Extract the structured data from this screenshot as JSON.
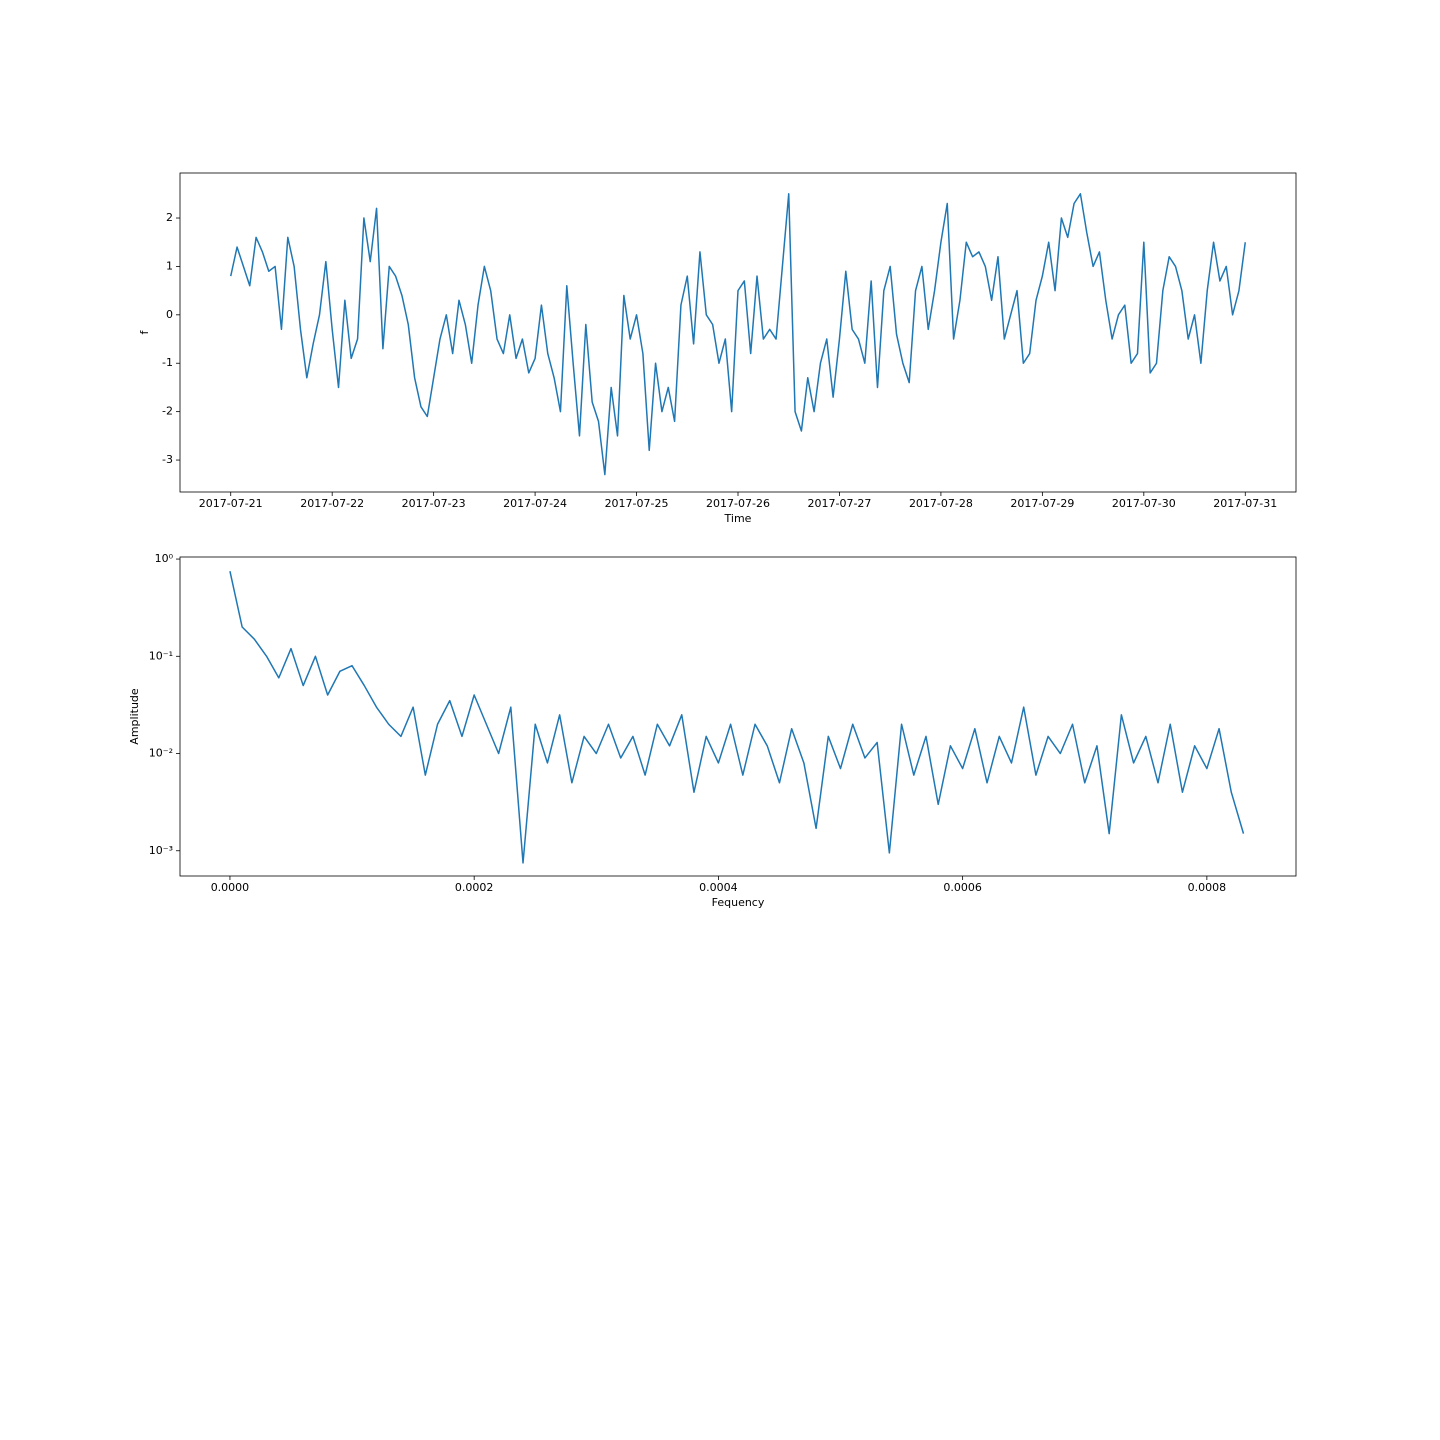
{
  "chart_data": [
    {
      "type": "line",
      "xlabel": "Time",
      "ylabel": "f",
      "color": "#1f77b4",
      "x": [
        0,
        1.5,
        3,
        4.5,
        6,
        7.5,
        9,
        10.5,
        12,
        13.5,
        15,
        16.5,
        18,
        19.5,
        21,
        22.5,
        24,
        25.5,
        27,
        28.5,
        30,
        31.5,
        33,
        34.5,
        36,
        37.5,
        39,
        40.5,
        42,
        43.5,
        45,
        46.5,
        48,
        49.5,
        51,
        52.5,
        54,
        55.5,
        57,
        58.5,
        60,
        61.5,
        63,
        64.5,
        66,
        67.5,
        69,
        70.5,
        72,
        73.5,
        75,
        76.5,
        78,
        79.5,
        81,
        82.5,
        84,
        85.5,
        87,
        88.5,
        90,
        91.5,
        93,
        94.5,
        96,
        97.5,
        99,
        100.5,
        102,
        103.5,
        105,
        106.5,
        108,
        109.5,
        111,
        112.5,
        114,
        115.5,
        117,
        118.5,
        120,
        121.5,
        123,
        124.5,
        126,
        127.5,
        129,
        130.5,
        132,
        133.5,
        135,
        136.5,
        138,
        139.5,
        141,
        142.5,
        144,
        145.5,
        147,
        148.5,
        150,
        151.5,
        153,
        154.5,
        156,
        157.5,
        159,
        160.5,
        162,
        163.5,
        165,
        166.5,
        168,
        169.5,
        171,
        172.5,
        174,
        175.5,
        177,
        178.5,
        180,
        181.5,
        183,
        184.5,
        186,
        187.5,
        189,
        190.5,
        192,
        193.5,
        195,
        196.5,
        198,
        199.5,
        201,
        202.5,
        204,
        205.5,
        207,
        208.5,
        210,
        211.5,
        213,
        214.5,
        216,
        217.5,
        219,
        220.5,
        222,
        223.5,
        225,
        226.5,
        228,
        229.5,
        231,
        232.5,
        234,
        235.5,
        237,
        238.5,
        240
      ],
      "values": [
        0.8,
        1.4,
        1.0,
        0.6,
        1.6,
        1.3,
        0.9,
        1.0,
        -0.3,
        1.6,
        1.0,
        -0.3,
        -1.3,
        -0.6,
        0.0,
        1.1,
        -0.3,
        -1.5,
        0.3,
        -0.9,
        -0.5,
        2.0,
        1.1,
        2.2,
        -0.7,
        1.0,
        0.8,
        0.4,
        -0.2,
        -1.3,
        -1.9,
        -2.1,
        -1.3,
        -0.5,
        0.0,
        -0.8,
        0.3,
        -0.2,
        -1.0,
        0.2,
        1.0,
        0.5,
        -0.5,
        -0.8,
        0.0,
        -0.9,
        -0.5,
        -1.2,
        -0.9,
        0.2,
        -0.8,
        -1.3,
        -2.0,
        0.6,
        -1.0,
        -2.5,
        -0.2,
        -1.8,
        -2.2,
        -3.3,
        -1.5,
        -2.5,
        0.4,
        -0.5,
        0.0,
        -0.8,
        -2.8,
        -1.0,
        -2.0,
        -1.5,
        -2.2,
        0.2,
        0.8,
        -0.6,
        1.3,
        0.0,
        -0.2,
        -1.0,
        -0.5,
        -2.0,
        0.5,
        0.7,
        -0.8,
        0.8,
        -0.5,
        -0.3,
        -0.5,
        1.0,
        2.5,
        -2.0,
        -2.4,
        -1.3,
        -2.0,
        -1.0,
        -0.5,
        -1.7,
        -0.5,
        0.9,
        -0.3,
        -0.5,
        -1.0,
        0.7,
        -1.5,
        0.5,
        1.0,
        -0.4,
        -1.0,
        -1.4,
        0.5,
        1.0,
        -0.3,
        0.5,
        1.5,
        2.3,
        -0.5,
        0.3,
        1.5,
        1.2,
        1.3,
        1.0,
        0.3,
        1.2,
        -0.5,
        0.0,
        0.5,
        -1.0,
        -0.8,
        0.3,
        0.8,
        1.5,
        0.5,
        2.0,
        1.6,
        2.3,
        2.5,
        1.7,
        1.0,
        1.3,
        0.3,
        -0.5,
        0.0,
        0.2,
        -1.0,
        -0.8,
        1.5,
        -1.2,
        -1.0,
        0.5,
        1.2,
        1.0,
        0.5,
        -0.5,
        0.0,
        -1.0,
        0.5,
        1.5,
        0.7,
        1.0,
        0.0,
        0.5,
        1.5
      ],
      "xlim": [
        -12,
        252
      ],
      "xticks": [
        {
          "value": 0,
          "label": "2017-07-21"
        },
        {
          "value": 24,
          "label": "2017-07-22"
        },
        {
          "value": 48,
          "label": "2017-07-23"
        },
        {
          "value": 72,
          "label": "2017-07-24"
        },
        {
          "value": 96,
          "label": "2017-07-25"
        },
        {
          "value": 120,
          "label": "2017-07-26"
        },
        {
          "value": 144,
          "label": "2017-07-27"
        },
        {
          "value": 168,
          "label": "2017-07-28"
        },
        {
          "value": 192,
          "label": "2017-07-29"
        },
        {
          "value": 216,
          "label": "2017-07-30"
        },
        {
          "value": 240,
          "label": "2017-07-31"
        }
      ],
      "ylim": [
        -3.66,
        2.93
      ],
      "yticks": [
        -3,
        -2,
        -1,
        0,
        1,
        2
      ]
    },
    {
      "type": "line",
      "xlabel": "Fequency",
      "ylabel": "Amplitude",
      "color": "#1f77b4",
      "yscale": "log",
      "x": [
        0,
        1e-05,
        2e-05,
        3e-05,
        4e-05,
        5e-05,
        6e-05,
        7e-05,
        8e-05,
        9e-05,
        0.0001,
        0.00011,
        0.00012,
        0.00013,
        0.00014,
        0.00015,
        0.00016,
        0.00017,
        0.00018,
        0.00019,
        0.0002,
        0.00021,
        0.00022,
        0.00023,
        0.00024,
        0.00025,
        0.00026,
        0.00027,
        0.00028,
        0.00029,
        0.0003,
        0.00031,
        0.00032,
        0.00033,
        0.00034,
        0.00035,
        0.00036,
        0.00037,
        0.00038,
        0.00039,
        0.0004,
        0.00041,
        0.00042,
        0.00043,
        0.00044,
        0.00045,
        0.00046,
        0.00047,
        0.00048,
        0.00049,
        0.0005,
        0.00051,
        0.00052,
        0.00053,
        0.00054,
        0.00055,
        0.00056,
        0.00057,
        0.00058,
        0.00059,
        0.0006,
        0.00061,
        0.00062,
        0.00063,
        0.00064,
        0.00065,
        0.00066,
        0.00067,
        0.00068,
        0.00069,
        0.0007,
        0.00071,
        0.00072,
        0.00073,
        0.00074,
        0.00075,
        0.00076,
        0.00077,
        0.00078,
        0.00079,
        0.0008,
        0.00081,
        0.00082,
        0.00083
      ],
      "values": [
        0.75,
        0.2,
        0.15,
        0.1,
        0.06,
        0.12,
        0.05,
        0.1,
        0.04,
        0.07,
        0.08,
        0.05,
        0.03,
        0.02,
        0.015,
        0.03,
        0.006,
        0.02,
        0.035,
        0.015,
        0.04,
        0.02,
        0.01,
        0.03,
        0.00075,
        0.02,
        0.008,
        0.025,
        0.005,
        0.015,
        0.01,
        0.02,
        0.009,
        0.015,
        0.006,
        0.02,
        0.012,
        0.025,
        0.004,
        0.015,
        0.008,
        0.02,
        0.006,
        0.02,
        0.012,
        0.005,
        0.018,
        0.008,
        0.0017,
        0.015,
        0.007,
        0.02,
        0.009,
        0.013,
        0.00095,
        0.02,
        0.006,
        0.015,
        0.003,
        0.012,
        0.007,
        0.018,
        0.005,
        0.015,
        0.008,
        0.03,
        0.006,
        0.015,
        0.01,
        0.02,
        0.005,
        0.012,
        0.0015,
        0.025,
        0.008,
        0.015,
        0.005,
        0.02,
        0.004,
        0.012,
        0.007,
        0.018,
        0.004,
        0.0015
      ],
      "xlim": [
        -4.09e-05,
        0.000873
      ],
      "xticks": [
        {
          "value": 0,
          "label": "0.0000"
        },
        {
          "value": 0.0002,
          "label": "0.0002"
        },
        {
          "value": 0.0004,
          "label": "0.0004"
        },
        {
          "value": 0.0006,
          "label": "0.0006"
        },
        {
          "value": 0.0008,
          "label": "0.0008"
        }
      ],
      "ylim": [
        0.00055,
        1.05
      ],
      "yticks": [
        {
          "value": 0.001,
          "label": "10⁻³"
        },
        {
          "value": 0.01,
          "label": "10⁻²"
        },
        {
          "value": 0.1,
          "label": "10⁻¹"
        },
        {
          "value": 1,
          "label": "10⁰"
        }
      ]
    }
  ]
}
